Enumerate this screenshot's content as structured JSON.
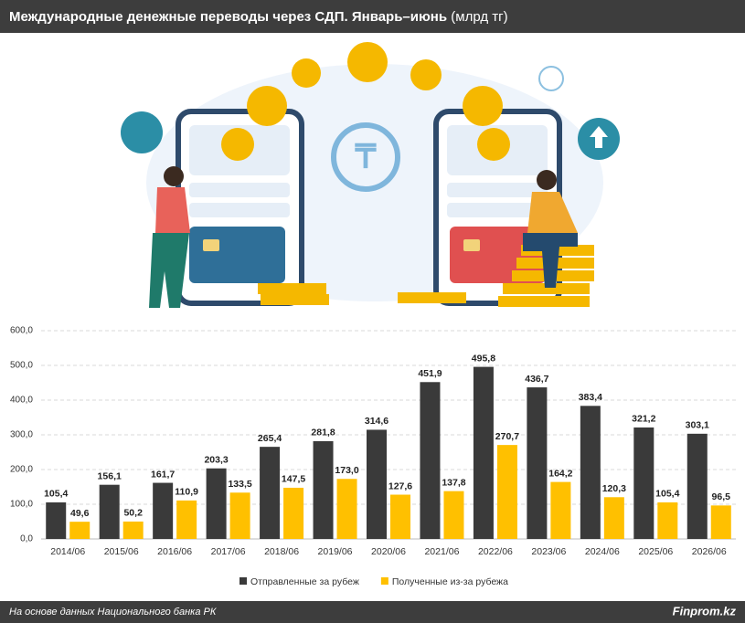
{
  "chart_data": {
    "type": "bar",
    "title": "Международные денежные переводы через СДП. Январь–июнь",
    "unit": "(млрд тг)",
    "categories": [
      "2014/06",
      "2015/06",
      "2016/06",
      "2017/06",
      "2018/06",
      "2019/06",
      "2020/06",
      "2021/06",
      "2022/06",
      "2023/06",
      "2024/06",
      "2025/06",
      "2026/06"
    ],
    "series": [
      {
        "name": "Отправленные за рубеж",
        "color": "#3a3a3a",
        "values": [
          105.4,
          156.1,
          161.7,
          203.3,
          265.4,
          281.8,
          314.6,
          451.9,
          495.8,
          436.7,
          383.4,
          321.2,
          303.1
        ],
        "value_labels": [
          "105,4",
          "156,1",
          "161,7",
          "203,3",
          "265,4",
          "281,8",
          "314,6",
          "451,9",
          "495,8",
          "436,7",
          "383,4",
          "321,2",
          "303,1"
        ]
      },
      {
        "name": "Полученные из-за рубежа",
        "color": "#ffc000",
        "values": [
          49.6,
          50.2,
          110.9,
          133.5,
          147.5,
          173.0,
          127.6,
          137.8,
          270.7,
          164.2,
          120.3,
          105.4,
          96.5
        ],
        "value_labels": [
          "49,6",
          "50,2",
          "110,9",
          "133,5",
          "147,5",
          "173,0",
          "127,6",
          "137,8",
          "270,7",
          "164,2",
          "120,3",
          "105,4",
          "96,5"
        ]
      }
    ],
    "ylim": [
      0,
      600
    ],
    "yticks": [
      {
        "value": 0,
        "label": "0,0"
      },
      {
        "value": 100,
        "label": "100,0"
      },
      {
        "value": 200,
        "label": "200,0"
      },
      {
        "value": 300,
        "label": "300,0"
      },
      {
        "value": 400,
        "label": "400,0"
      },
      {
        "value": 500,
        "label": "500,0"
      },
      {
        "value": 600,
        "label": "600,0"
      }
    ],
    "grid": true,
    "legend": "bottom",
    "source": "На основе данных Национального банка РК",
    "brand": "Finprom.kz"
  }
}
